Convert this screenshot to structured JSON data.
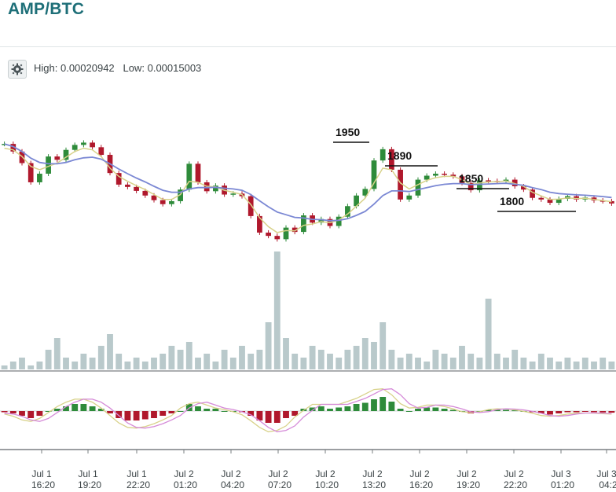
{
  "title": "AMP/BTC",
  "toolbar": {
    "settings_icon": "gear-icon"
  },
  "hilo": {
    "high_label": "High:",
    "high_value": "0.00020942",
    "low_label": "Low:",
    "low_value": "0.00015003"
  },
  "colors": {
    "up": "#2e8b3a",
    "down": "#b0182c",
    "ema_fast": "#d8d28a",
    "ema_slow": "#7b88d4",
    "volume": "#b9c9cb",
    "macd_fast": "#d8d28a",
    "macd_slow": "#d58ad8",
    "annotation_line": "#111111"
  },
  "chart_data": {
    "type": "candlestick",
    "pair": "AMP/BTC",
    "x_ticks": [
      [
        "Jul 1",
        "16:20"
      ],
      [
        "Jul 1",
        "19:20"
      ],
      [
        "Jul 1",
        "22:20"
      ],
      [
        "Jul 2",
        "01:20"
      ],
      [
        "Jul 2",
        "04:20"
      ],
      [
        "Jul 2",
        "07:20"
      ],
      [
        "Jul 2",
        "10:20"
      ],
      [
        "Jul 2",
        "13:20"
      ],
      [
        "Jul 2",
        "16:20"
      ],
      [
        "Jul 2",
        "19:20"
      ],
      [
        "Jul 2",
        "22:20"
      ],
      [
        "Jul 3",
        "01:20"
      ],
      [
        "Jul 3",
        "04:2"
      ]
    ],
    "ylim": [
      0.00015003,
      0.00020942
    ],
    "price_series": [
      0.0001968,
      0.0001945,
      0.000191,
      0.0001852,
      0.0001878,
      0.000193,
      0.000192,
      0.000195,
      0.0001965,
      0.0001972,
      0.0001958,
      0.0001935,
      0.000188,
      0.0001845,
      0.0001838,
      0.0001826,
      0.0001812,
      0.0001798,
      0.0001786,
      0.0001795,
      0.000183,
      0.0001908,
      0.0001852,
      0.0001825,
      0.0001842,
      0.0001815,
      0.0001818,
      0.000181,
      0.000175,
      0.00017,
      0.000169,
      0.000168,
      0.0001715,
      0.0001702,
      0.0001752,
      0.000173,
      0.0001741,
      0.000172,
      0.0001748,
      0.000178,
      0.0001812,
      0.0001832,
      0.0001918,
      0.0001952,
      0.000189,
      0.00018,
      0.0001812,
      0.000186,
      0.0001872,
      0.0001878,
      0.0001875,
      0.000187,
      0.000185,
      0.0001828,
      0.0001858,
      0.0001856,
      0.0001855,
      0.000186,
      0.000184,
      0.000183,
      0.0001805,
      0.00018,
      0.000179,
      0.0001802,
      0.000181,
      0.00018,
      0.0001806,
      0.0001797,
      0.0001795,
      0.0001788
    ],
    "ema_fast": [
      0.0001955,
      0.000195,
      0.000193,
      0.00019,
      0.000189,
      0.00019,
      0.000191,
      0.0001928,
      0.0001945,
      0.0001955,
      0.000195,
      0.000193,
      0.0001895,
      0.000187,
      0.0001855,
      0.0001842,
      0.000183,
      0.0001815,
      0.00018,
      0.00018,
      0.0001815,
      0.0001855,
      0.0001852,
      0.000184,
      0.0001838,
      0.0001828,
      0.0001822,
      0.0001815,
      0.0001785,
      0.0001745,
      0.0001718,
      0.00017,
      0.0001706,
      0.0001705,
      0.0001722,
      0.0001726,
      0.0001733,
      0.000173,
      0.0001738,
      0.0001756,
      0.000178,
      0.0001804,
      0.000185,
      0.0001895,
      0.000189,
      0.000185,
      0.0001832,
      0.0001845,
      0.0001858,
      0.0001866,
      0.000187,
      0.000187,
      0.000186,
      0.0001845,
      0.000185,
      0.0001853,
      0.0001854,
      0.0001856,
      0.0001848,
      0.000184,
      0.0001822,
      0.0001811,
      0.00018,
      0.0001801,
      0.0001805,
      0.0001803,
      0.0001804,
      0.00018,
      0.0001797,
      0.0001793
    ],
    "ema_slow": [
      0.0001968,
      0.000196,
      0.0001945,
      0.0001925,
      0.0001912,
      0.0001908,
      0.0001908,
      0.0001912,
      0.000192,
      0.0001926,
      0.0001928,
      0.0001922,
      0.0001908,
      0.0001892,
      0.0001878,
      0.0001865,
      0.0001853,
      0.000184,
      0.0001828,
      0.0001822,
      0.0001822,
      0.0001832,
      0.0001836,
      0.0001836,
      0.0001837,
      0.0001834,
      0.0001832,
      0.0001828,
      0.0001815,
      0.0001796,
      0.0001778,
      0.0001762,
      0.0001754,
      0.0001746,
      0.0001744,
      0.000174,
      0.0001739,
      0.0001736,
      0.0001737,
      0.0001742,
      0.0001752,
      0.0001764,
      0.0001786,
      0.0001812,
      0.0001826,
      0.0001826,
      0.0001824,
      0.000183,
      0.0001836,
      0.0001842,
      0.0001846,
      0.0001848,
      0.0001848,
      0.0001845,
      0.0001846,
      0.0001847,
      0.0001848,
      0.0001849,
      0.0001846,
      0.0001843,
      0.0001836,
      0.000183,
      0.0001822,
      0.0001818,
      0.0001816,
      0.0001814,
      0.0001813,
      0.0001811,
      0.0001809,
      0.0001806
    ],
    "volume": [
      1,
      2,
      3,
      1,
      2,
      5,
      8,
      3,
      2,
      4,
      3,
      6,
      9,
      4,
      2,
      3,
      2,
      3,
      4,
      6,
      5,
      7,
      3,
      4,
      2,
      5,
      3,
      6,
      4,
      5,
      12,
      30,
      8,
      4,
      3,
      6,
      5,
      4,
      3,
      5,
      6,
      8,
      7,
      12,
      5,
      3,
      4,
      3,
      2,
      5,
      4,
      3,
      6,
      4,
      3,
      18,
      4,
      3,
      5,
      3,
      2,
      4,
      3,
      2,
      3,
      2,
      3,
      2,
      3,
      2
    ],
    "macd": [
      -0.5,
      -1,
      -2,
      -3,
      -2,
      0,
      1,
      2,
      3,
      3,
      2,
      1,
      -1,
      -3,
      -4,
      -4,
      -3.5,
      -3,
      -2,
      -1,
      0,
      3,
      2,
      1,
      1,
      0,
      0,
      -0.5,
      -2,
      -4,
      -5,
      -5,
      -3,
      -2,
      1,
      1.5,
      2,
      1,
      1.5,
      2,
      3,
      3.5,
      5,
      6,
      4,
      1,
      0,
      1,
      1.5,
      1.5,
      1,
      0.5,
      0,
      -1,
      0,
      0.5,
      0.5,
      0.5,
      0.3,
      0,
      -0.5,
      -1,
      -1.5,
      -1,
      -0.5,
      -0.5,
      -0.3,
      -0.5,
      -0.6,
      -0.7
    ],
    "annotations": [
      {
        "label": "1950"
      },
      {
        "label": "1890"
      },
      {
        "label": "1850"
      },
      {
        "label": "1800"
      }
    ]
  }
}
